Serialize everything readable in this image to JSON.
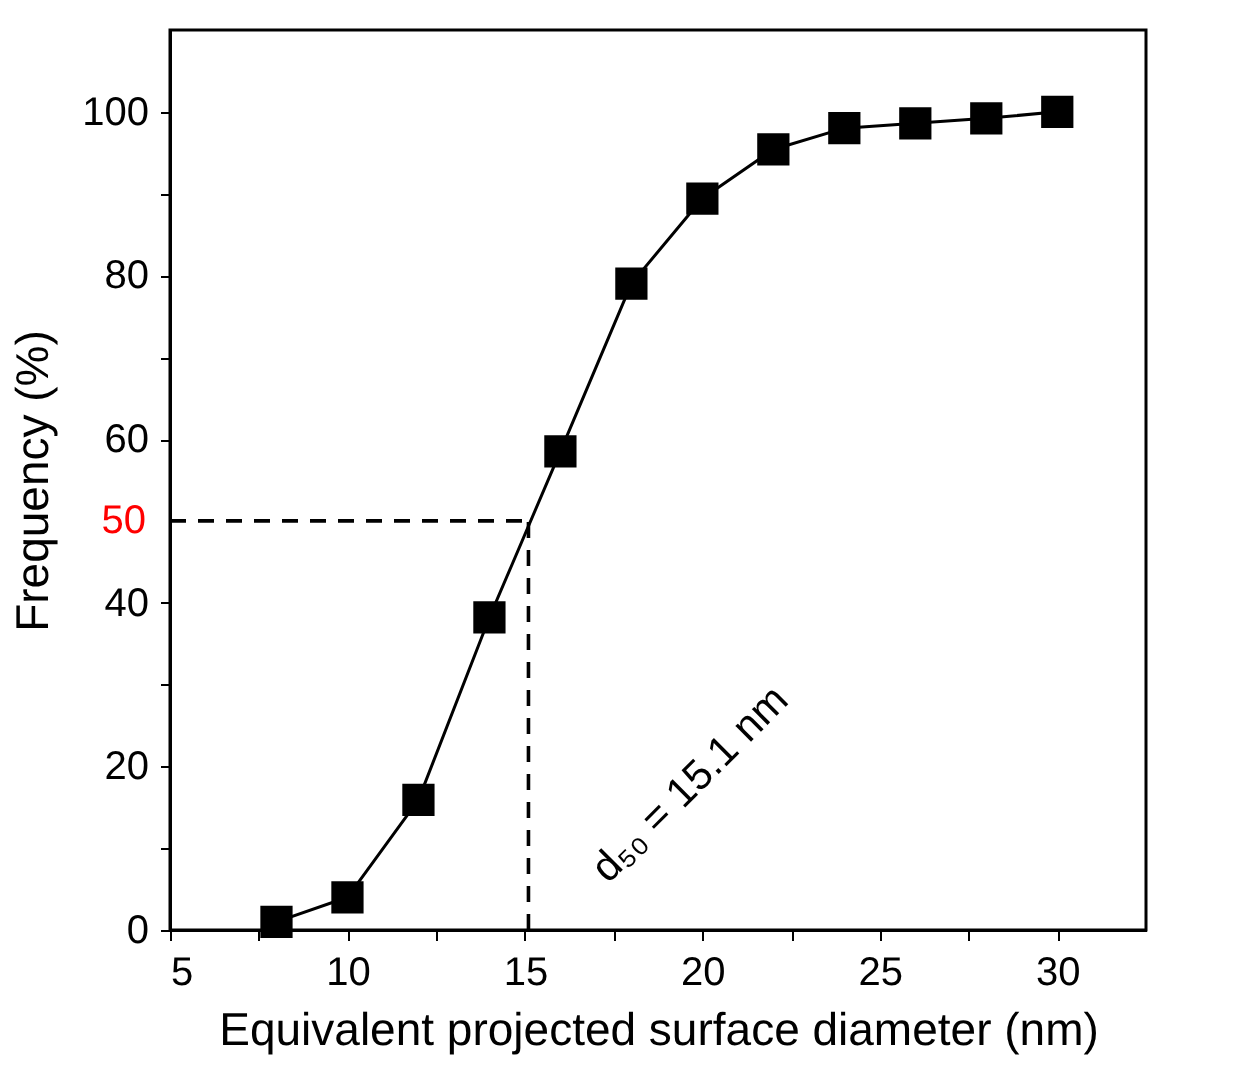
{
  "chart_data": {
    "type": "line",
    "xlabel": "Equivalent projected surface diameter (nm)",
    "ylabel": "Frequency (%)",
    "x": [
      8,
      10,
      12,
      14,
      16,
      18,
      20,
      22,
      24,
      26,
      28,
      30
    ],
    "series": [
      {
        "color": "#000000",
        "values": [
          1,
          4,
          15.9,
          38.2,
          58.5,
          79,
          89.4,
          95.4,
          98,
          98.6,
          99.2,
          100
        ]
      }
    ],
    "xlim": [
      5,
      32.5
    ],
    "ylim": [
      0,
      110
    ],
    "xticks": [
      5,
      {
        "value": 7.5,
        "label": null
      },
      10,
      {
        "value": 12.5,
        "label": null
      },
      15,
      {
        "value": 17.5,
        "label": null
      },
      20,
      {
        "value": 22.5,
        "label": null
      },
      25,
      {
        "value": 27.5,
        "label": null
      },
      30
    ],
    "yticks": [
      0,
      {
        "value": 10,
        "label": null
      },
      20,
      {
        "value": 30,
        "label": null
      },
      40,
      60,
      {
        "value": 70,
        "label": null
      },
      80,
      {
        "value": 90,
        "label": null
      },
      100
    ],
    "ref_lines": [
      {
        "axis": "y",
        "value": 50,
        "label": "50",
        "color": "#000000",
        "line_style": "dashed"
      },
      {
        "axis": "x",
        "value": 15.1,
        "color": "#000000",
        "line_style": "dashed"
      }
    ],
    "annotations": [
      "d₅₀ = 15.1 nm"
    ],
    "marker": "square",
    "line_style": "solid",
    "grid": false
  }
}
